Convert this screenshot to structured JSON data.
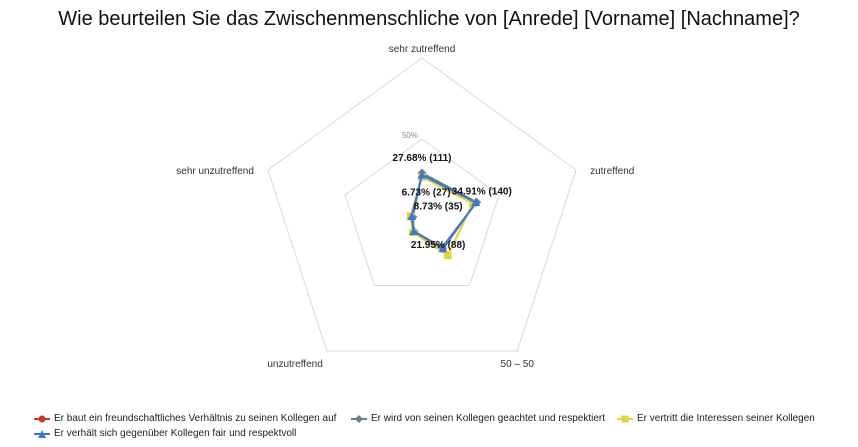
{
  "title": "Wie beurteilen Sie das Zwischenmenschliche von [Anrede] [Vorname] [Nachname]?",
  "chart_data": {
    "type": "radar",
    "categories": [
      "sehr zutreffend",
      "zutreffend",
      "50 – 50",
      "unzutreffend",
      "sehr unzutreffend"
    ],
    "scale_max": 100,
    "ring_labels": [
      {
        "value": 50,
        "text": "50%"
      }
    ],
    "grid": true,
    "legend_position": "bottom",
    "series": [
      {
        "name": "Er baut ein freundschaftliches Verhältnis zu seinen Kollegen auf",
        "color": "#c0392b",
        "marker": "circle",
        "values": [
          27.68,
          34.91,
          21.95,
          8.73,
          6.73
        ]
      },
      {
        "name": "Er wird von seinen Kollegen geachtet und respektiert",
        "color": "#6a7f8c",
        "marker": "diamond",
        "values": [
          29.0,
          35.5,
          21.0,
          8.5,
          6.0
        ]
      },
      {
        "name": "Er vertritt die Interessen seiner Kollegen",
        "color": "#e3d43a",
        "marker": "square",
        "values": [
          26.5,
          33.0,
          27.0,
          9.5,
          7.5
        ]
      },
      {
        "name": "Er verhält sich gegenüber Kollegen fair und respektvoll",
        "color": "#3a78d4",
        "marker": "triangle",
        "values": [
          27.68,
          34.91,
          21.95,
          8.73,
          6.73
        ]
      }
    ],
    "data_labels": [
      {
        "category": "sehr zutreffend",
        "text": "27.68% (111)"
      },
      {
        "category": "zutreffend",
        "text": "34.91% (140)"
      },
      {
        "category": "50 – 50",
        "text": "21.95% (88)"
      },
      {
        "category": "unzutreffend",
        "text": "8.73% (35)"
      },
      {
        "category": "sehr unzutreffend",
        "text": "6.73% (27)"
      }
    ]
  }
}
